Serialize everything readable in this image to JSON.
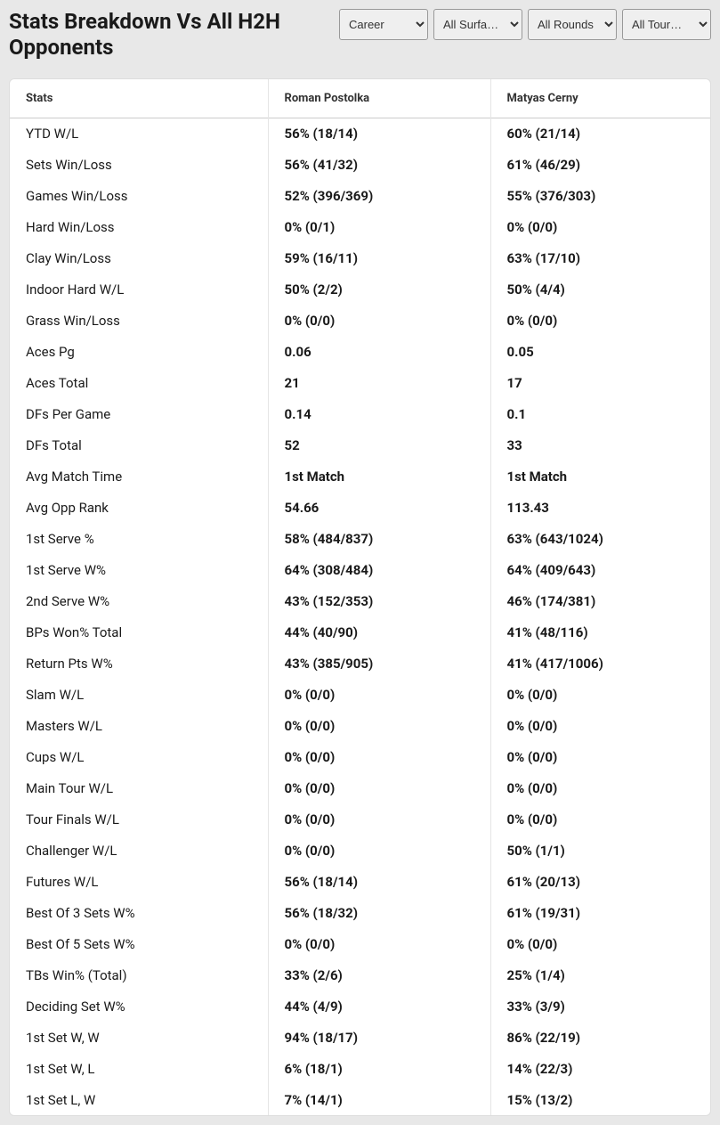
{
  "title": "Stats Breakdown Vs All H2H Opponents",
  "filters": {
    "period": {
      "selected": "Career",
      "options": [
        "Career"
      ]
    },
    "surface": {
      "selected": "All Surfa…",
      "options": [
        "All Surfa…"
      ]
    },
    "rounds": {
      "selected": "All Rounds",
      "options": [
        "All Rounds"
      ]
    },
    "tours": {
      "selected": "All Tour…",
      "options": [
        "All Tour…"
      ]
    }
  },
  "table": {
    "columns": [
      "Stats",
      "Roman Postolka",
      "Matyas Cerny"
    ],
    "rows": [
      [
        "YTD W/L",
        "56% (18/14)",
        "60% (21/14)"
      ],
      [
        "Sets Win/Loss",
        "56% (41/32)",
        "61% (46/29)"
      ],
      [
        "Games Win/Loss",
        "52% (396/369)",
        "55% (376/303)"
      ],
      [
        "Hard Win/Loss",
        "0% (0/1)",
        "0% (0/0)"
      ],
      [
        "Clay Win/Loss",
        "59% (16/11)",
        "63% (17/10)"
      ],
      [
        "Indoor Hard W/L",
        "50% (2/2)",
        "50% (4/4)"
      ],
      [
        "Grass Win/Loss",
        "0% (0/0)",
        "0% (0/0)"
      ],
      [
        "Aces Pg",
        "0.06",
        "0.05"
      ],
      [
        "Aces Total",
        "21",
        "17"
      ],
      [
        "DFs Per Game",
        "0.14",
        "0.1"
      ],
      [
        "DFs Total",
        "52",
        "33"
      ],
      [
        "Avg Match Time",
        "1st Match",
        "1st Match"
      ],
      [
        "Avg Opp Rank",
        "54.66",
        "113.43"
      ],
      [
        "1st Serve %",
        "58% (484/837)",
        "63% (643/1024)"
      ],
      [
        "1st Serve W%",
        "64% (308/484)",
        "64% (409/643)"
      ],
      [
        "2nd Serve W%",
        "43% (152/353)",
        "46% (174/381)"
      ],
      [
        "BPs Won% Total",
        "44% (40/90)",
        "41% (48/116)"
      ],
      [
        "Return Pts W%",
        "43% (385/905)",
        "41% (417/1006)"
      ],
      [
        "Slam W/L",
        "0% (0/0)",
        "0% (0/0)"
      ],
      [
        "Masters W/L",
        "0% (0/0)",
        "0% (0/0)"
      ],
      [
        "Cups W/L",
        "0% (0/0)",
        "0% (0/0)"
      ],
      [
        "Main Tour W/L",
        "0% (0/0)",
        "0% (0/0)"
      ],
      [
        "Tour Finals W/L",
        "0% (0/0)",
        "0% (0/0)"
      ],
      [
        "Challenger W/L",
        "0% (0/0)",
        "50% (1/1)"
      ],
      [
        "Futures W/L",
        "56% (18/14)",
        "61% (20/13)"
      ],
      [
        "Best Of 3 Sets W%",
        "56% (18/32)",
        "61% (19/31)"
      ],
      [
        "Best Of 5 Sets W%",
        "0% (0/0)",
        "0% (0/0)"
      ],
      [
        "TBs Win% (Total)",
        "33% (2/6)",
        "25% (1/4)"
      ],
      [
        "Deciding Set W%",
        "44% (4/9)",
        "33% (3/9)"
      ],
      [
        "1st Set W, W",
        "94% (18/17)",
        "86% (22/19)"
      ],
      [
        "1st Set W, L",
        "6% (18/1)",
        "14% (22/3)"
      ],
      [
        "1st Set L, W",
        "7% (14/1)",
        "15% (13/2)"
      ]
    ]
  },
  "colors": {
    "background": "#e8e8e8",
    "table_bg": "#ffffff",
    "text": "#1a1a1a",
    "border": "#cccccc"
  }
}
